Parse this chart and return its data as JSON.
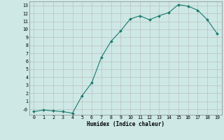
{
  "x": [
    0,
    1,
    2,
    3,
    4,
    5,
    6,
    7,
    8,
    9,
    10,
    11,
    12,
    13,
    14,
    15,
    16,
    17,
    18,
    19
  ],
  "y": [
    -0.3,
    -0.1,
    -0.2,
    -0.3,
    -0.5,
    1.7,
    3.3,
    6.5,
    8.5,
    9.8,
    11.3,
    11.7,
    11.2,
    11.7,
    12.1,
    13.1,
    12.9,
    12.4,
    11.2,
    9.5
  ],
  "xlabel": "Humidex (Indice chaleur)",
  "xlim": [
    -0.5,
    19.5
  ],
  "ylim": [
    -0.7,
    13.5
  ],
  "yticks": [
    0,
    1,
    2,
    3,
    4,
    5,
    6,
    7,
    8,
    9,
    10,
    11,
    12,
    13
  ],
  "xticks": [
    0,
    1,
    2,
    3,
    4,
    5,
    6,
    7,
    8,
    9,
    10,
    11,
    12,
    13,
    14,
    15,
    16,
    17,
    18,
    19
  ],
  "line_color": "#1a7a6e",
  "marker_color": "#1a7a6e",
  "bg_color": "#cde8e5",
  "grid_color": "#b8b8b8",
  "fig_bg": "#cde8e5"
}
